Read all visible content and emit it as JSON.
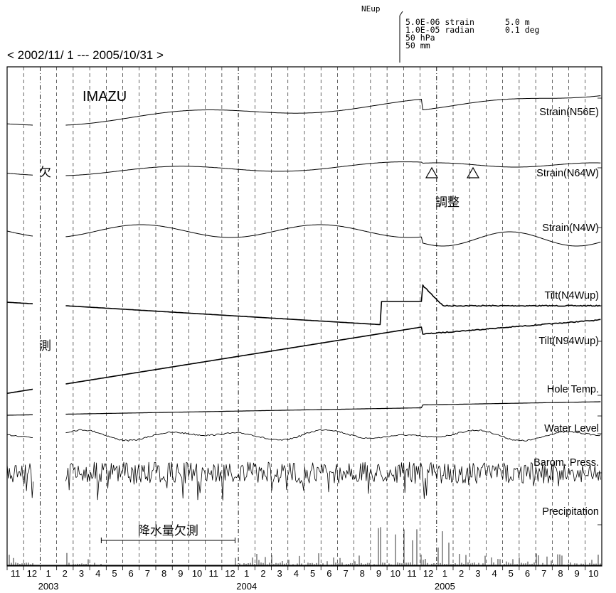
{
  "header": {
    "period": "< 2002/11/ 1 --- 2005/10/31 >",
    "direction_label": "NEup",
    "scale_rows": [
      {
        "left": "5.0E-06 strain",
        "right": "5.0 m"
      },
      {
        "left": "1.0E-05 radian",
        "right": "0.1 deg"
      },
      {
        "left": "50 hPa",
        "right": ""
      },
      {
        "left": "50 mm",
        "right": ""
      }
    ]
  },
  "chart_data": {
    "type": "line",
    "station": "IMAZU",
    "x_range": [
      "2002-11-01",
      "2005-10-31"
    ],
    "month_ticks": [
      "11",
      "12",
      "1",
      "2",
      "3",
      "4",
      "5",
      "6",
      "7",
      "8",
      "9",
      "10",
      "11",
      "12",
      "1",
      "2",
      "3",
      "4",
      "5",
      "6",
      "7",
      "8",
      "9",
      "10",
      "11",
      "12",
      "1",
      "2",
      "3",
      "4",
      "5",
      "6",
      "7",
      "8",
      "9",
      "10"
    ],
    "year_labels": [
      "2003",
      "2004",
      "2005"
    ],
    "grid": "vertical dashed lines at month boundaries",
    "series": [
      {
        "name": "Strain(N56E)"
      },
      {
        "name": "Strain(N64W)"
      },
      {
        "name": "Strain(N4W)"
      },
      {
        "name": "Tilt(N4Wup)"
      },
      {
        "name": "Tilt(N94Wup)"
      },
      {
        "name": "Hole Temp."
      },
      {
        "name": "Water Level"
      },
      {
        "name": "Barom. Press."
      },
      {
        "name": "Precipitation"
      }
    ],
    "annotations": {
      "missing_top": "欠",
      "missing_bottom": "測",
      "adjustment": "調整",
      "precip_missing": "降水量欠測"
    }
  }
}
